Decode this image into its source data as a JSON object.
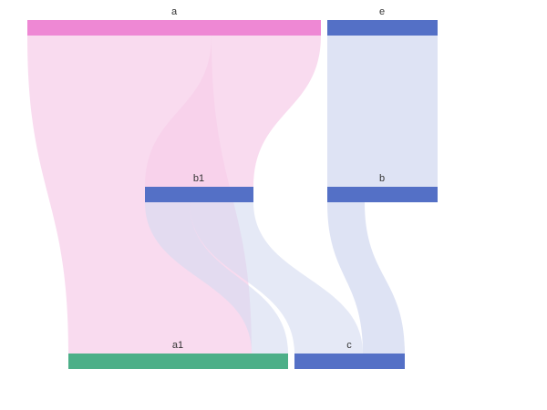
{
  "diagram": {
    "type": "sankey",
    "nodes": [
      {
        "id": "a",
        "label": "a",
        "color": "#ee88d4"
      },
      {
        "id": "e",
        "label": "e",
        "color": "#5470c6"
      },
      {
        "id": "b1",
        "label": "b1",
        "color": "#5470c6"
      },
      {
        "id": "b",
        "label": "b",
        "color": "#5470c6"
      },
      {
        "id": "a1",
        "label": "a1",
        "color": "#4caf88"
      },
      {
        "id": "c",
        "label": "c",
        "color": "#5470c6"
      }
    ],
    "links": [
      {
        "source": "a",
        "target": "a1",
        "value": 5
      },
      {
        "source": "a",
        "target": "b1",
        "value": 3
      },
      {
        "source": "e",
        "target": "b",
        "value": 3
      },
      {
        "source": "b1",
        "target": "a1",
        "value": 1
      },
      {
        "source": "b1",
        "target": "c",
        "value": 2
      },
      {
        "source": "b",
        "target": "c",
        "value": 1
      }
    ],
    "link_colors": {
      "pink": "#f7cfea",
      "blue": "#d3daf0"
    }
  }
}
